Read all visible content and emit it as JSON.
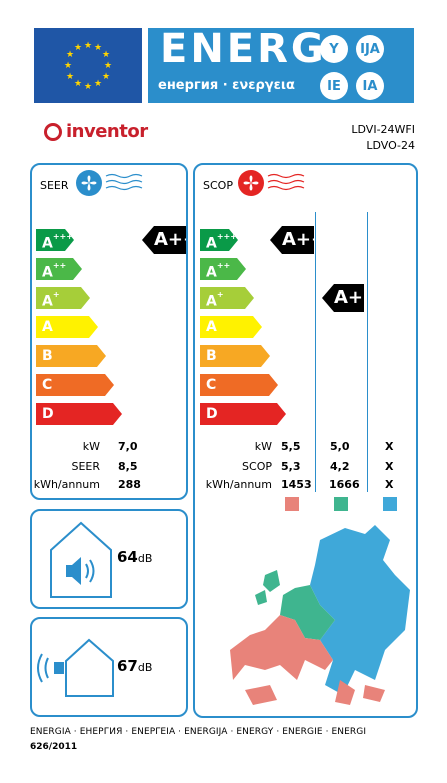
{
  "header": {
    "title": "ENERG",
    "subtitle": "енергия · ενεργεια",
    "lang_badges": [
      "Y",
      "IJA",
      "IE",
      "IA"
    ]
  },
  "brand": {
    "name": "inventor"
  },
  "model": {
    "indoor": "LDVI-24WFI",
    "outdoor": "LDVO-24"
  },
  "classes": [
    "A+++",
    "A++",
    "A+",
    "A",
    "B",
    "C",
    "D"
  ],
  "colors": {
    "accent": "#2b8ecb",
    "eu_blue": "#1f56a6",
    "class_colors": [
      "#0a9a48",
      "#4bb848",
      "#a6ce39",
      "#fff200",
      "#f7a823",
      "#ef6b25",
      "#e42523"
    ],
    "zone_warmer": "#e8837a",
    "zone_average": "#3fb58f",
    "zone_colder": "#3fa8d9"
  },
  "cooling": {
    "title": "SEER",
    "rating": "A+++",
    "labels": [
      "kW",
      "SEER",
      "kWh/annum"
    ],
    "values": [
      "7,0",
      "8,5",
      "288"
    ]
  },
  "heating": {
    "title": "SCOP",
    "rating_warmer": "A+++",
    "rating_average": "A+",
    "labels": [
      "kW",
      "SCOP",
      "kWh/annum"
    ],
    "warmer": [
      "5,5",
      "5,3",
      "1453"
    ],
    "average": [
      "5,0",
      "4,2",
      "1666"
    ],
    "colder": [
      "X",
      "X",
      "X"
    ]
  },
  "noise": {
    "indoor_value": "64",
    "outdoor_value": "67",
    "unit": "dB"
  },
  "footer": {
    "languages": "ENERGIA · ЕНЕРГИЯ · ΕΝΕΡΓΕΙΑ · ENERGIJA · ENERGY · ENERGIE · ENERGI",
    "regulation": "626/2011"
  },
  "icons": [
    "eu-flag-icon",
    "fan-icon",
    "heat-fan-icon",
    "speaker-icon",
    "house-icon",
    "europe-map"
  ]
}
